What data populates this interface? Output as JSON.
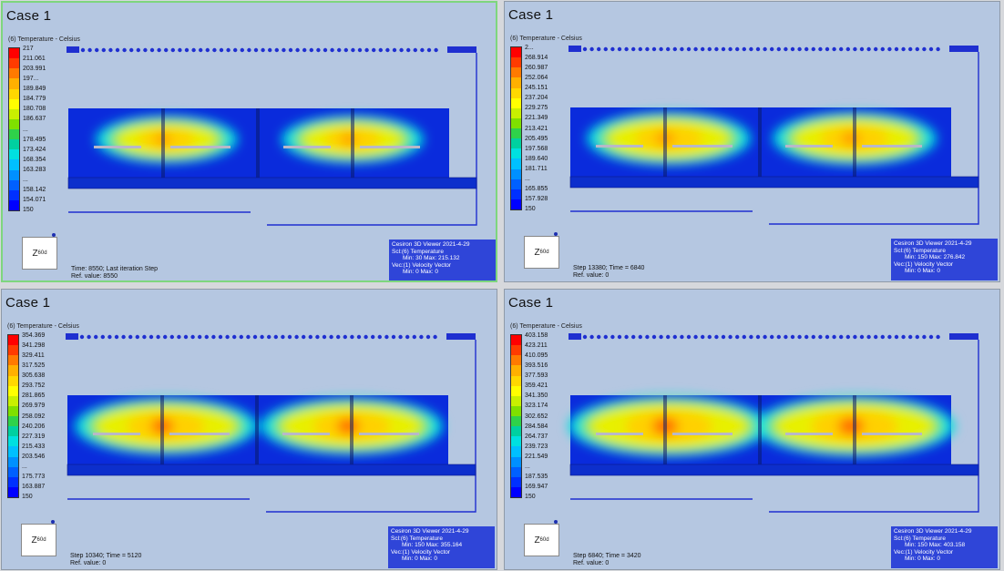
{
  "viewports": [
    {
      "title": "Case 1",
      "colorbar_title": "(6) Temperature - Celsius",
      "colorbar_labels": [
        "217",
        "211.061",
        "203.991",
        "197...",
        "189.849",
        "184.779",
        "180.708",
        "186.637",
        "...",
        "178.495",
        "173.424",
        "168.354",
        "163.283",
        "...",
        "158.142",
        "154.071",
        "150"
      ],
      "info_left": [
        "Time: 8550; Last iteration Step",
        "Ref. value: 8550"
      ],
      "info_box": [
        "Cesiron 3D Viewer   2021-4-29",
        "Scl:(6) Temperature",
        "Min: 30 Max: 215.132",
        "Vec:(1) Velocity Vector",
        "Min: 0 Max: 0"
      ],
      "active": true
    },
    {
      "title": "Case 1",
      "colorbar_title": "(6) Temperature - Celsius",
      "colorbar_labels": [
        "2...",
        "268.914",
        "260.987",
        "252.064",
        "245.151",
        "237.204",
        "229.275",
        "221.349",
        "213.421",
        "205.495",
        "197.568",
        "189.640",
        "181.711",
        "...",
        "165.855",
        "157.928",
        "150"
      ],
      "info_left": [
        "Step 13380; Time = 6840",
        "Ref. value: 0"
      ],
      "info_box": [
        "Cesiron 3D Viewer   2021-4-29",
        "Scl:(6) Temperature",
        "Min: 150 Max: 276.842",
        "Vec:(1) Velocity Vector",
        "Min: 0 Max: 0"
      ],
      "active": false
    },
    {
      "title": "Case 1",
      "colorbar_title": "(6) Temperature - Celsius",
      "colorbar_labels": [
        "354.369",
        "341.298",
        "329.411",
        "317.525",
        "305.638",
        "293.752",
        "281.865",
        "269.979",
        "258.092",
        "240.206",
        "227.319",
        "215.433",
        "203.546",
        "...",
        "175.773",
        "163.887",
        "150"
      ],
      "info_left": [
        "Step 10340; Time = 5120",
        "Ref. value: 0"
      ],
      "info_box": [
        "Cesiron 3D Viewer   2021-4-29",
        "Scl:(6) Temperature",
        "Min: 150 Max: 355.164",
        "Vec:(1) Velocity Vector",
        "Min: 0 Max: 0"
      ],
      "active": false
    },
    {
      "title": "Case 1",
      "colorbar_title": "(6) Temperature - Celsius",
      "colorbar_labels": [
        "403.158",
        "423.211",
        "410.095",
        "393.516",
        "377.593",
        "359.421",
        "341.350",
        "323.174",
        "302.652",
        "284.584",
        "264.737",
        "239.723",
        "221.549",
        "...",
        "187.535",
        "169.947",
        "150"
      ],
      "info_left": [
        "Step 6840; Time = 3420",
        "Ref. value: 0"
      ],
      "info_box": [
        "Cesiron 3D Viewer   2021-4-29",
        "Scl:(6) Temperature",
        "Min: 150 Max: 403.158",
        "Vec:(1) Velocity Vector",
        "Min: 0 Max: 0"
      ],
      "active": false
    }
  ],
  "heat_levels": [
    0.3,
    0.55,
    0.75,
    0.95
  ],
  "colors": {
    "viewport_bg": "#b5c7e1",
    "domain_base": "#0a2bdc",
    "floor": "#0d2fcc",
    "info_box": "#2f45d8",
    "active_border": "#7ed67e"
  },
  "triad_label": "Z",
  "triad_sub": "60d"
}
